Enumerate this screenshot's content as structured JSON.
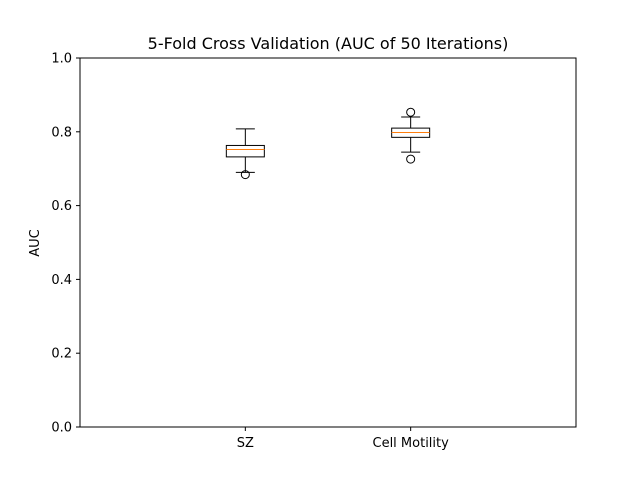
{
  "chart_data": {
    "type": "box",
    "title": "5-Fold Cross Validation (AUC of 50 Iterations)",
    "xlabel": "",
    "ylabel": "AUC",
    "ylim": [
      0.0,
      1.0
    ],
    "yticks": [
      "0.0",
      "0.2",
      "0.4",
      "0.6",
      "0.8",
      "1.0"
    ],
    "categories": [
      "SZ",
      "Cell Motility"
    ],
    "boxes": [
      {
        "category": "SZ",
        "whisker_low": 0.69,
        "q1": 0.732,
        "median": 0.752,
        "q3": 0.763,
        "whisker_high": 0.808,
        "outliers": [
          0.684
        ]
      },
      {
        "category": "Cell Motility",
        "whisker_low": 0.745,
        "q1": 0.785,
        "median": 0.798,
        "q3": 0.81,
        "whisker_high": 0.84,
        "outliers": [
          0.726,
          0.853
        ]
      }
    ],
    "grid": false,
    "legend": "none",
    "colors": {
      "box": "#000000",
      "median": "#ff7f0e",
      "outlier": "#000000"
    }
  }
}
